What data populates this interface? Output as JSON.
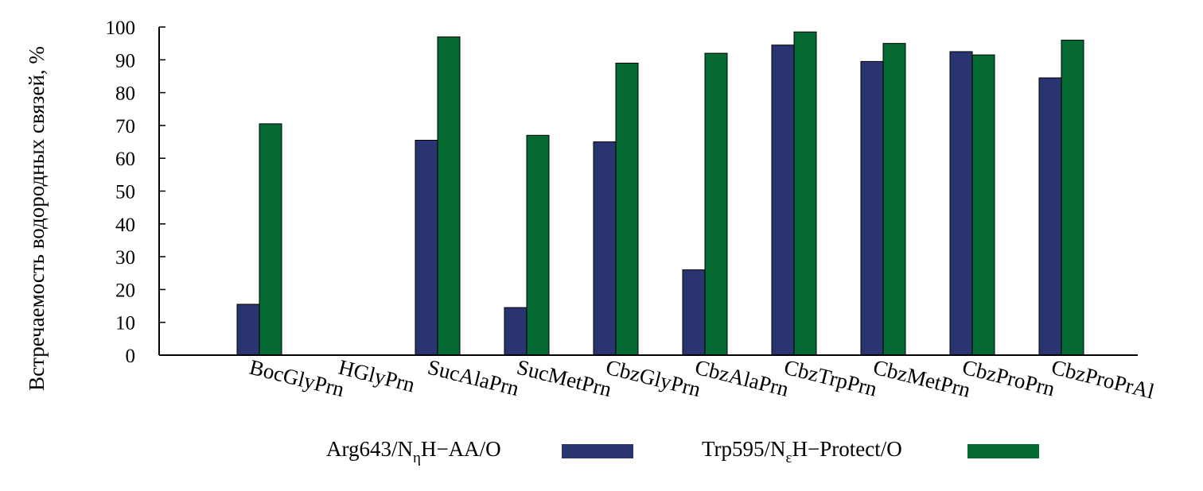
{
  "chart_data": {
    "type": "bar",
    "ylabel": "Встречаемость водородных связей, %",
    "xlabel": "",
    "ylim": [
      0,
      100
    ],
    "yticks": [
      0,
      10,
      20,
      30,
      40,
      50,
      60,
      70,
      80,
      90,
      100
    ],
    "grid": false,
    "legend_position": "bottom",
    "categories": [
      "BocGlyPrn",
      "HGlyPrn",
      "SucAlaPrn",
      "SucMetPrn",
      "CbzGlyPrn",
      "CbzAlaPrn",
      "CbzTrpPrn",
      "CbzMetPrn",
      "CbzProPrn",
      "CbzProPrAl"
    ],
    "series": [
      {
        "name": "Arg643/NηH−AA/O",
        "legend": {
          "base": "Arg643/N",
          "sub": "η",
          "rest": "H−AA/O"
        },
        "color": "#2a3470",
        "values": [
          15.5,
          0,
          65.5,
          14.5,
          65,
          26,
          94.5,
          89.5,
          92.5,
          84.5
        ]
      },
      {
        "name": "Trp595/NεH−Protect/O",
        "legend": {
          "base": "Trp595/N",
          "sub": "ε",
          "rest": "H−Protect/O"
        },
        "color": "#056932",
        "values": [
          70.5,
          0,
          97,
          67,
          89,
          92,
          98.5,
          95,
          91.5,
          96
        ]
      }
    ]
  }
}
